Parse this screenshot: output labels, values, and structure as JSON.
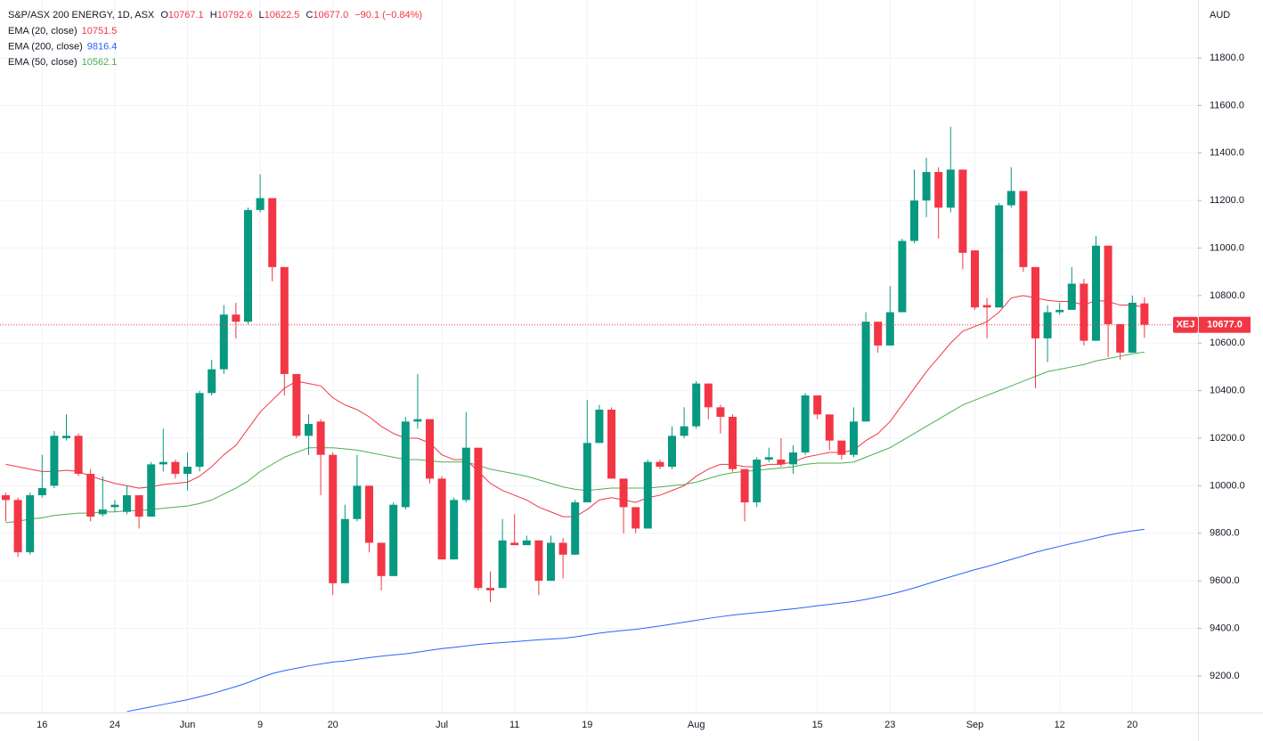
{
  "chart_data": {
    "type": "candlestick",
    "title": "S&P/ASX 200 ENERGY, 1D, ASX",
    "legend": {
      "ohlc_labels": [
        "O",
        "H",
        "L",
        "C"
      ],
      "ohlc_values": [
        "10767.1",
        "10792.6",
        "10622.5",
        "10677.0"
      ],
      "change": "−90.1 (−0.84%)"
    },
    "currency": "AUD",
    "symbol": "XEJ",
    "last_price_label": "10677.0",
    "up_color": "#089981",
    "down_color": "#f23645",
    "categories": [
      null,
      null,
      null,
      "16",
      null,
      null,
      null,
      null,
      null,
      "24",
      null,
      null,
      null,
      null,
      null,
      "Jun",
      null,
      null,
      null,
      null,
      null,
      "9",
      null,
      null,
      null,
      null,
      null,
      "20",
      null,
      null,
      null,
      null,
      null,
      null,
      null,
      null,
      "Jul",
      null,
      null,
      null,
      null,
      null,
      "11",
      null,
      null,
      null,
      null,
      null,
      "19",
      null,
      null,
      null,
      null,
      null,
      null,
      null,
      null,
      "Aug",
      null,
      null,
      null,
      null,
      null,
      null,
      null,
      null,
      null,
      "15",
      null,
      null,
      null,
      null,
      null,
      "23",
      null,
      null,
      null,
      null,
      null,
      null,
      "Sep",
      null,
      null,
      null,
      null,
      null,
      null,
      "12",
      null,
      null,
      null,
      null,
      null,
      "20",
      null
    ],
    "candles": {
      "open": [
        9960,
        9940,
        9720,
        9960,
        10000,
        10200,
        10210,
        10050,
        9880,
        9910,
        9890,
        9960,
        9870,
        10090,
        10100,
        10050,
        10080,
        10390,
        10490,
        10720,
        10690,
        11160,
        11210,
        10920,
        10470,
        10210,
        10270,
        10130,
        9590,
        9860,
        10000,
        9760,
        9620,
        9910,
        10270,
        10280,
        10030,
        9690,
        9940,
        10160,
        9570,
        9570,
        9760,
        9750,
        9770,
        9600,
        9760,
        9710,
        9930,
        10180,
        10320,
        10030,
        9910,
        9820,
        10100,
        10080,
        10210,
        10250,
        10430,
        10330,
        10290,
        10070,
        9930,
        10110,
        10110,
        10090,
        10140,
        10380,
        10300,
        10190,
        10130,
        10270,
        10690,
        10590,
        10730,
        11030,
        11200,
        11320,
        11170,
        11330,
        10990,
        10760,
        10750,
        11180,
        11240,
        10920,
        10620,
        10730,
        10740,
        10850,
        10610,
        11010,
        10680,
        10560,
        10767.1
      ],
      "high": [
        9970,
        9950,
        9970,
        10130,
        10230,
        10300,
        10220,
        10070,
        10040,
        9940,
        10000,
        9960,
        10100,
        10240,
        10110,
        10140,
        10400,
        10530,
        10760,
        10770,
        11170,
        11310,
        11210,
        10920,
        10470,
        10300,
        10280,
        10140,
        9920,
        10130,
        10000,
        9760,
        9930,
        10290,
        10470,
        10280,
        10040,
        9950,
        10310,
        10160,
        9640,
        9860,
        9880,
        9790,
        9770,
        9790,
        9780,
        9940,
        10360,
        10340,
        10330,
        10030,
        9910,
        10110,
        10110,
        10250,
        10330,
        10440,
        10430,
        10340,
        10300,
        10070,
        10120,
        10160,
        10200,
        10170,
        10390,
        10380,
        10300,
        10190,
        10330,
        10730,
        10690,
        10840,
        11040,
        11330,
        11380,
        11340,
        11510,
        11330,
        10990,
        10790,
        11190,
        11340,
        11240,
        10920,
        10760,
        10770,
        10920,
        10870,
        11050,
        11010,
        10680,
        10800,
        10792.6
      ],
      "low": [
        9850,
        9700,
        9710,
        9950,
        9990,
        10190,
        10040,
        9850,
        9870,
        9890,
        9880,
        9820,
        9870,
        10060,
        10030,
        9980,
        10060,
        10380,
        10470,
        10620,
        10680,
        11150,
        10860,
        10380,
        10200,
        10130,
        9960,
        9540,
        9590,
        9850,
        9720,
        9560,
        9620,
        9900,
        10240,
        10010,
        9690,
        9690,
        9930,
        9560,
        9510,
        9570,
        9750,
        9750,
        9540,
        9600,
        9610,
        9710,
        9930,
        10180,
        10030,
        9800,
        9800,
        9820,
        10070,
        10070,
        10200,
        10240,
        10280,
        10220,
        10060,
        9850,
        9910,
        10100,
        10080,
        10050,
        10130,
        10280,
        10150,
        10110,
        10120,
        10270,
        10560,
        10590,
        10730,
        11020,
        11130,
        11040,
        11150,
        10910,
        10740,
        10620,
        10750,
        11170,
        10900,
        10410,
        10520,
        10720,
        10740,
        10590,
        10610,
        10540,
        10530,
        10560,
        10622.5
      ],
      "close": [
        9940,
        9720,
        9960,
        9990,
        10210,
        10210,
        10050,
        9870,
        9900,
        9920,
        9960,
        9870,
        10090,
        10100,
        10050,
        10080,
        10390,
        10490,
        10720,
        10690,
        11160,
        11210,
        10920,
        10470,
        10210,
        10260,
        10130,
        9590,
        9860,
        10000,
        9760,
        9620,
        9920,
        10270,
        10280,
        10030,
        9690,
        9940,
        10160,
        9570,
        9560,
        9770,
        9750,
        9770,
        9600,
        9760,
        9710,
        9930,
        10180,
        10320,
        10030,
        9910,
        9820,
        10100,
        10080,
        10210,
        10250,
        10430,
        10330,
        10290,
        10070,
        9930,
        10110,
        10120,
        10090,
        10140,
        10380,
        10300,
        10190,
        10130,
        10270,
        10690,
        10590,
        10730,
        11030,
        11200,
        11320,
        11170,
        11330,
        10980,
        10750,
        10750,
        11180,
        11240,
        10920,
        10620,
        10730,
        10740,
        10850,
        10610,
        11010,
        10680,
        10560,
        10770,
        10677.0
      ]
    },
    "overlays": [
      {
        "name": "EMA (20, close)",
        "color": "#f23645",
        "values": [
          10090,
          10080,
          10070,
          10060,
          10060,
          10065,
          10060,
          10040,
          10025,
          10010,
          10000,
          9990,
          9995,
          10005,
          10010,
          10015,
          10040,
          10080,
          10130,
          10170,
          10240,
          10310,
          10360,
          10410,
          10440,
          10430,
          10420,
          10370,
          10340,
          10320,
          10290,
          10250,
          10220,
          10200,
          10200,
          10180,
          10130,
          10110,
          10110,
          10060,
          10010,
          9980,
          9960,
          9940,
          9910,
          9890,
          9870,
          9870,
          9900,
          9940,
          9950,
          9940,
          9930,
          9950,
          9960,
          9980,
          10000,
          10040,
          10070,
          10090,
          10090,
          10080,
          10080,
          10090,
          10090,
          10100,
          10120,
          10130,
          10140,
          10140,
          10150,
          10190,
          10220,
          10270,
          10340,
          10410,
          10480,
          10540,
          10600,
          10650,
          10670,
          10690,
          10730,
          10790,
          10800,
          10790,
          10780,
          10775,
          10775,
          10760,
          10780,
          10775,
          10760,
          10760,
          10751.5
        ]
      },
      {
        "name": "EMA (200, close)",
        "color": "#2962ff",
        "values": [
          null,
          null,
          null,
          null,
          null,
          null,
          null,
          null,
          null,
          null,
          9050,
          9060,
          9070,
          9080,
          9090,
          9100,
          9112,
          9125,
          9140,
          9155,
          9172,
          9192,
          9210,
          9222,
          9232,
          9242,
          9250,
          9258,
          9263,
          9270,
          9277,
          9283,
          9288,
          9293,
          9300,
          9308,
          9315,
          9320,
          9326,
          9332,
          9337,
          9340,
          9344,
          9348,
          9352,
          9355,
          9358,
          9364,
          9372,
          9380,
          9386,
          9391,
          9396,
          9403,
          9410,
          9418,
          9426,
          9434,
          9442,
          9449,
          9456,
          9461,
          9466,
          9471,
          9477,
          9482,
          9488,
          9495,
          9501,
          9507,
          9513,
          9522,
          9532,
          9543,
          9556,
          9570,
          9586,
          9602,
          9617,
          9632,
          9647,
          9660,
          9675,
          9690,
          9705,
          9720,
          9733,
          9745,
          9757,
          9768,
          9780,
          9792,
          9802,
          9810,
          9816.4
        ]
      },
      {
        "name": "EMA (50, close)",
        "color": "#4caf50",
        "values": [
          9845,
          9850,
          9860,
          9865,
          9875,
          9880,
          9885,
          9885,
          9890,
          9890,
          9895,
          9895,
          9900,
          9905,
          9910,
          9915,
          9925,
          9940,
          9965,
          9990,
          10020,
          10060,
          10090,
          10120,
          10140,
          10160,
          10160,
          10160,
          10155,
          10150,
          10140,
          10130,
          10120,
          10110,
          10110,
          10105,
          10100,
          10100,
          10100,
          10085,
          10070,
          10060,
          10050,
          10040,
          10025,
          10010,
          9995,
          9985,
          9980,
          9985,
          9990,
          9990,
          9990,
          9990,
          9995,
          10000,
          10005,
          10015,
          10030,
          10045,
          10055,
          10060,
          10065,
          10070,
          10075,
          10080,
          10090,
          10095,
          10095,
          10095,
          10100,
          10120,
          10140,
          10160,
          10190,
          10220,
          10250,
          10280,
          10310,
          10340,
          10360,
          10380,
          10400,
          10420,
          10440,
          10460,
          10480,
          10490,
          10500,
          10510,
          10525,
          10535,
          10545,
          10555,
          10562.1
        ]
      }
    ],
    "ylim": [
      9046,
      12043.5
    ],
    "yticks": [
      {
        "value": 9200,
        "label": "9200.0"
      },
      {
        "value": 9400,
        "label": "9400.0"
      },
      {
        "value": 9600,
        "label": "9600.0"
      },
      {
        "value": 9800,
        "label": "9800.0"
      },
      {
        "value": 10000,
        "label": "10000.0"
      },
      {
        "value": 10200,
        "label": "10200.0"
      },
      {
        "value": 10400,
        "label": "10400.0"
      },
      {
        "value": 10600,
        "label": "10600.0"
      },
      {
        "value": 10800,
        "label": "10800.0"
      },
      {
        "value": 11000,
        "label": "11000.0"
      },
      {
        "value": 11200,
        "label": "11200.0"
      },
      {
        "value": 11400,
        "label": "11400.0"
      },
      {
        "value": 11600,
        "label": "11600.0"
      },
      {
        "value": 11800,
        "label": "11800.0"
      }
    ],
    "grid": true
  }
}
